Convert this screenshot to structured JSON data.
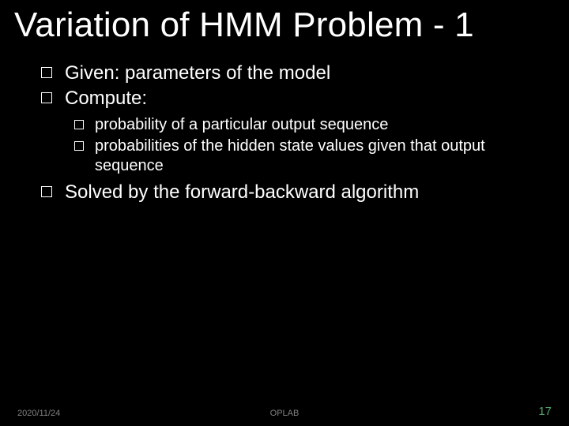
{
  "colors": {
    "background": "#000000",
    "text": "#ffffff",
    "footer_text": "#808080",
    "page_number": "#54a46d"
  },
  "title": "Variation of HMM Problem - 1",
  "bullets": [
    {
      "level": 1,
      "text": "Given: parameters of the model"
    },
    {
      "level": 1,
      "text": "Compute:"
    },
    {
      "level": 2,
      "text": "probability of a particular output sequence"
    },
    {
      "level": 2,
      "text": "probabilities of the hidden state values given that output sequence"
    },
    {
      "level": 1,
      "text": "Solved by the forward-backward algorithm"
    }
  ],
  "footer": {
    "date": "2020/11/24",
    "center": "OPLAB",
    "page": "17"
  }
}
